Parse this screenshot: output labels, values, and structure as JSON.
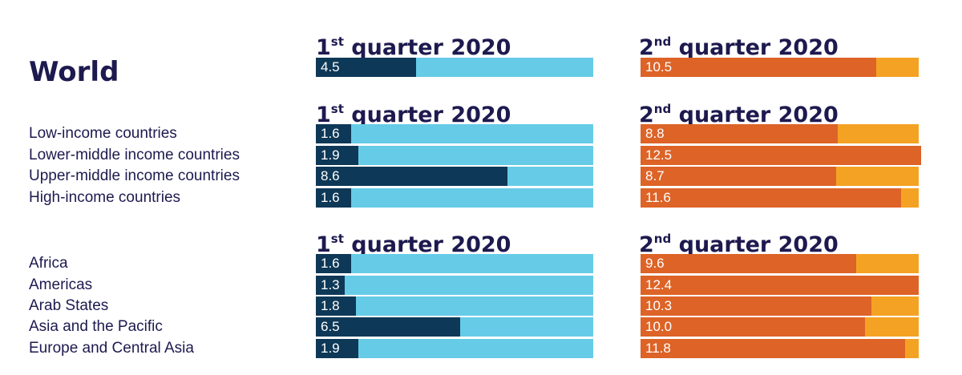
{
  "column_heads": {
    "q1": {
      "prefix": "1",
      "sup": "st",
      "suffix": " quarter 2020"
    },
    "q2": {
      "prefix": "2",
      "sup": "nd",
      "suffix": " quarter 2020"
    }
  },
  "colors": {
    "q1_track": "#66cbe6",
    "q1_fill": "#0e3857",
    "q2_track": "#f4a223",
    "q2_fill": "#dd6327",
    "text": "#1d1a4f"
  },
  "chart_data": {
    "type": "bar",
    "orientation": "horizontal",
    "value_max": 12.5,
    "groups": [
      {
        "heading": "World",
        "categories": [
          "World"
        ],
        "q1": [
          4.5
        ],
        "q2": [
          10.5
        ]
      },
      {
        "heading": "",
        "categories": [
          "Low-income countries",
          "Lower-middle income countries",
          "Upper-middle income countries",
          "High-income countries"
        ],
        "q1": [
          1.6,
          1.9,
          8.6,
          1.6
        ],
        "q2": [
          8.8,
          12.5,
          8.7,
          11.6
        ]
      },
      {
        "heading": "",
        "categories": [
          "Africa",
          "Americas",
          "Arab States",
          "Asia and the Pacific",
          "Europe and Central Asia"
        ],
        "q1": [
          1.6,
          1.3,
          1.8,
          6.5,
          1.9
        ],
        "q2": [
          9.6,
          12.4,
          10.3,
          10.0,
          11.8
        ]
      }
    ]
  }
}
